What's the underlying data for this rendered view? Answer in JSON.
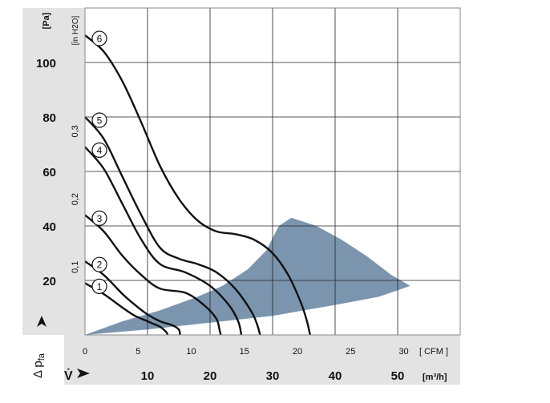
{
  "chart_data": {
    "type": "line",
    "title": "",
    "ylabel_left": "Δ p",
    "ylabel_left_subscript": "fa",
    "ylabel_left_units": "[Pa]",
    "ylabel_inh2o": "[in H2O]",
    "xlabel_bottom": "V̇",
    "x_units_cfm": "[ CFM ]",
    "x_units_m3h": "[m³/h]",
    "pa_ticks": [
      {
        "value": 20,
        "label": "20"
      },
      {
        "value": 40,
        "label": "40"
      },
      {
        "value": 60,
        "label": "60"
      },
      {
        "value": 80,
        "label": "80"
      },
      {
        "value": 100,
        "label": "100"
      }
    ],
    "inh2o_ticks": [
      {
        "value": 0.1,
        "label": "0,1"
      },
      {
        "value": 0.2,
        "label": "0,2"
      },
      {
        "value": 0.3,
        "label": "0,3"
      }
    ],
    "cfm_ticks": [
      {
        "value": 0,
        "label": "0"
      },
      {
        "value": 5,
        "label": "5"
      },
      {
        "value": 10,
        "label": "10"
      },
      {
        "value": 15,
        "label": "15"
      },
      {
        "value": 20,
        "label": "20"
      },
      {
        "value": 25,
        "label": "25"
      },
      {
        "value": 30,
        "label": "30"
      }
    ],
    "m3h_ticks": [
      {
        "value": 10,
        "label": "10"
      },
      {
        "value": 20,
        "label": "20"
      },
      {
        "value": 30,
        "label": "30"
      },
      {
        "value": 40,
        "label": "40"
      },
      {
        "value": 50,
        "label": "50"
      }
    ],
    "xlim_m3h": [
      0,
      60
    ],
    "ylim_pa": [
      0,
      120
    ],
    "grid": true,
    "colors": {
      "frame": "#888888",
      "grid": "#222222",
      "curve": "#111111",
      "operating_area": "#6d8aa6",
      "axis_panel": "#e3e3e3"
    },
    "series": [
      {
        "name": "1",
        "points": [
          [
            0,
            19
          ],
          [
            3,
            15
          ],
          [
            6,
            10
          ],
          [
            8,
            7
          ],
          [
            10,
            5
          ],
          [
            11,
            4
          ],
          [
            12,
            3
          ],
          [
            13,
            1
          ],
          [
            13.2,
            0
          ]
        ]
      },
      {
        "name": "2",
        "points": [
          [
            0,
            27
          ],
          [
            3,
            22
          ],
          [
            6,
            15
          ],
          [
            8,
            11
          ],
          [
            10,
            7.5
          ],
          [
            12,
            5
          ],
          [
            14,
            3.5
          ],
          [
            15,
            2
          ],
          [
            15.2,
            0
          ]
        ]
      },
      {
        "name": "3",
        "points": [
          [
            0,
            44
          ],
          [
            3,
            38
          ],
          [
            6,
            29
          ],
          [
            9,
            22
          ],
          [
            12,
            17
          ],
          [
            16,
            15.5
          ],
          [
            19,
            11
          ],
          [
            21,
            6
          ],
          [
            21.5,
            2
          ],
          [
            21.7,
            0
          ]
        ]
      },
      {
        "name": "4",
        "points": [
          [
            0,
            69
          ],
          [
            3,
            61
          ],
          [
            6,
            48
          ],
          [
            9,
            35
          ],
          [
            12,
            26
          ],
          [
            16,
            23
          ],
          [
            20,
            18
          ],
          [
            23,
            11
          ],
          [
            24.5,
            5
          ],
          [
            25,
            0
          ]
        ]
      },
      {
        "name": "5",
        "points": [
          [
            0,
            80
          ],
          [
            3,
            72
          ],
          [
            6,
            58
          ],
          [
            9,
            44
          ],
          [
            12,
            32
          ],
          [
            15,
            28
          ],
          [
            18,
            26
          ],
          [
            21,
            23
          ],
          [
            24,
            17
          ],
          [
            26.5,
            9
          ],
          [
            27.5,
            4
          ],
          [
            28,
            0
          ]
        ]
      },
      {
        "name": "6",
        "points": [
          [
            0,
            110
          ],
          [
            3,
            104
          ],
          [
            6,
            93
          ],
          [
            9,
            78
          ],
          [
            12,
            62
          ],
          [
            15,
            50
          ],
          [
            18,
            42
          ],
          [
            21,
            38
          ],
          [
            24,
            37
          ],
          [
            27,
            35
          ],
          [
            30,
            30
          ],
          [
            32.5,
            22
          ],
          [
            34.5,
            12
          ],
          [
            35.5,
            5
          ],
          [
            36,
            0
          ]
        ]
      }
    ],
    "operating_area": [
      [
        0,
        0
      ],
      [
        6,
        5
      ],
      [
        12,
        9
      ],
      [
        18,
        14
      ],
      [
        22,
        18
      ],
      [
        26,
        24
      ],
      [
        29,
        31
      ],
      [
        31,
        40
      ],
      [
        33,
        43
      ],
      [
        37,
        40
      ],
      [
        41,
        35
      ],
      [
        45,
        29
      ],
      [
        49,
        22
      ],
      [
        52,
        18
      ],
      [
        47,
        14
      ],
      [
        40,
        11
      ],
      [
        30,
        7
      ],
      [
        20,
        4.5
      ],
      [
        10,
        2
      ],
      [
        0,
        0
      ]
    ]
  }
}
